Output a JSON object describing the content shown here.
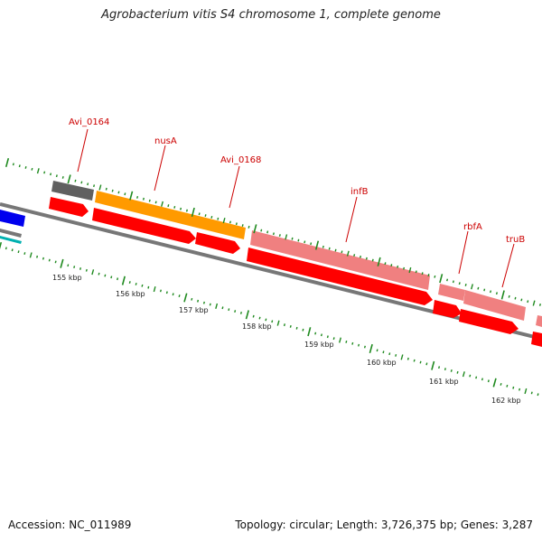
{
  "title": "Agrobacterium vitis S4 chromosome 1, complete genome",
  "footer": {
    "accession": "Accession: NC_011989",
    "summary": "Topology: circular; Length: 3,726,375 bp; Genes: 3,287"
  },
  "colors": {
    "label": "#cc0000",
    "tick": "#1f8a1f",
    "backbone": "#808080",
    "cds": "#ff0000",
    "gray_gene": "#666666",
    "orange_gene": "#ff9900",
    "pink_gene": "#f08080",
    "blue_gene": "#0000ff",
    "teal_gene": "#00aaaa"
  },
  "scale_labels": [
    "155 kbp",
    "156 kbp",
    "157 kbp",
    "158 kbp",
    "159 kbp",
    "160 kbp",
    "161 kbp",
    "162 kbp"
  ],
  "gene_labels": [
    "Avi_0164",
    "nusA",
    "Avi_0168",
    "infB",
    "rbfA",
    "truB"
  ]
}
